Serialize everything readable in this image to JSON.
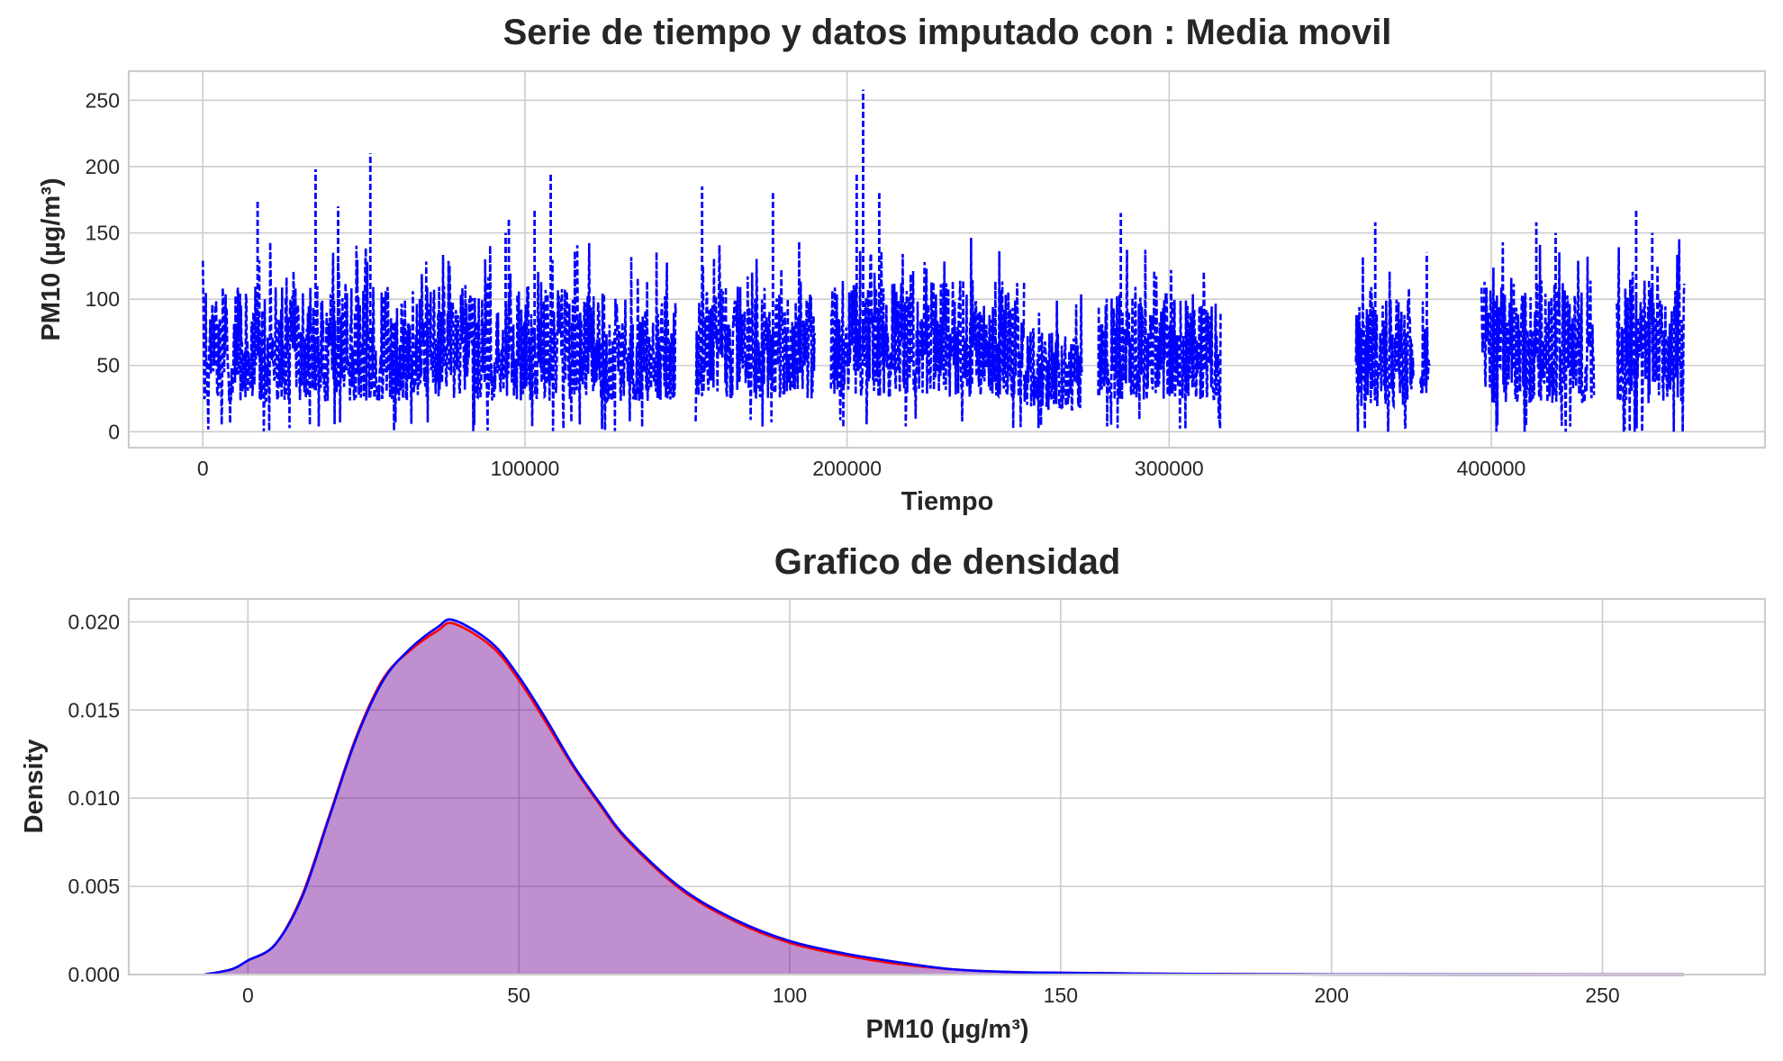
{
  "chart_data": [
    {
      "type": "line",
      "title": "Serie de tiempo y datos imputado con : Media movil",
      "xlabel": "Tiempo",
      "ylabel": "PM10 (µg/m³)",
      "xlim": [
        -23000,
        485000
      ],
      "ylim": [
        -12,
        272
      ],
      "xticks": [
        0,
        100000,
        200000,
        300000,
        400000
      ],
      "xtick_labels": [
        "0",
        "100000",
        "200000",
        "300000",
        "400000"
      ],
      "yticks": [
        0,
        50,
        100,
        150,
        200,
        250
      ],
      "ytick_labels": [
        "0",
        "50",
        "100",
        "150",
        "200",
        "250"
      ],
      "grid": true,
      "line_style": "dashed",
      "color": "#0000ff",
      "series": [
        {
          "segments": [
            {
              "x": [
                0,
                147000
              ],
              "low": 8,
              "high": 110
            },
            {
              "x": [
                153000,
                190000
              ],
              "low": 10,
              "high": 110
            },
            {
              "x": [
                195000,
                255000
              ],
              "low": 10,
              "high": 115
            },
            {
              "x": [
                255000,
                273000
              ],
              "low": 5,
              "high": 80
            },
            {
              "x": [
                278000,
                316000
              ],
              "low": 10,
              "high": 105
            },
            {
              "x": [
                358000,
                376000
              ],
              "low": 5,
              "high": 100
            },
            {
              "x": [
                378000,
                381000
              ],
              "low": 20,
              "high": 80
            },
            {
              "x": [
                397000,
                432000
              ],
              "low": 5,
              "high": 115
            },
            {
              "x": [
                439000,
                460000
              ],
              "low": 5,
              "high": 115
            }
          ],
          "peaks": [
            {
              "x": 17000,
              "y": 175
            },
            {
              "x": 35000,
              "y": 198
            },
            {
              "x": 42000,
              "y": 170
            },
            {
              "x": 52000,
              "y": 210
            },
            {
              "x": 95000,
              "y": 160
            },
            {
              "x": 94000,
              "y": 150
            },
            {
              "x": 103000,
              "y": 168
            },
            {
              "x": 108000,
              "y": 195
            },
            {
              "x": 155000,
              "y": 185
            },
            {
              "x": 177000,
              "y": 180
            },
            {
              "x": 203000,
              "y": 195
            },
            {
              "x": 205000,
              "y": 258
            },
            {
              "x": 210000,
              "y": 180
            },
            {
              "x": 285000,
              "y": 165
            },
            {
              "x": 364000,
              "y": 158
            },
            {
              "x": 380000,
              "y": 135
            },
            {
              "x": 414000,
              "y": 158
            },
            {
              "x": 420000,
              "y": 150
            },
            {
              "x": 445000,
              "y": 168
            },
            {
              "x": 450000,
              "y": 150
            }
          ]
        }
      ]
    },
    {
      "type": "area",
      "title": "Grafico de densidad",
      "xlabel": "PM10 (µg/m³)",
      "ylabel": "Density",
      "xlim": [
        -22,
        280
      ],
      "ylim": [
        0,
        0.0213
      ],
      "xticks": [
        0,
        50,
        100,
        150,
        200,
        250
      ],
      "xtick_labels": [
        "0",
        "50",
        "100",
        "150",
        "200",
        "250"
      ],
      "yticks": [
        0,
        0.005,
        0.01,
        0.015,
        0.02
      ],
      "ytick_labels": [
        "0.000",
        "0.005",
        "0.010",
        "0.015",
        "0.020"
      ],
      "grid": true,
      "fill_color": "#bf8fce",
      "series": [
        {
          "color": "#ff0000",
          "x": [
            -8,
            -3,
            0,
            5,
            10,
            15,
            20,
            25,
            30,
            35,
            38,
            45,
            50,
            55,
            60,
            65,
            70,
            80,
            90,
            100,
            110,
            120,
            130,
            140,
            150,
            170,
            200,
            250,
            265
          ],
          "y": [
            0,
            0.0003,
            0.0008,
            0.0017,
            0.0045,
            0.009,
            0.0135,
            0.0168,
            0.0184,
            0.0195,
            0.0199,
            0.0186,
            0.0167,
            0.0143,
            0.0118,
            0.0096,
            0.0076,
            0.0048,
            0.003,
            0.0018,
            0.0011,
            0.0006,
            0.0003,
            0.00015,
            0.0001,
            4e-05,
            1e-05,
            0,
            0
          ]
        },
        {
          "color": "#0000ff",
          "x": [
            -8,
            -3,
            0,
            5,
            10,
            15,
            20,
            25,
            30,
            35,
            38,
            45,
            50,
            55,
            60,
            65,
            70,
            80,
            90,
            100,
            110,
            120,
            130,
            140,
            150,
            170,
            200,
            250,
            265
          ],
          "y": [
            0,
            0.0003,
            0.0008,
            0.0017,
            0.0044,
            0.0089,
            0.0134,
            0.0167,
            0.0185,
            0.0197,
            0.0201,
            0.0188,
            0.0169,
            0.0145,
            0.0119,
            0.0097,
            0.0077,
            0.0049,
            0.0031,
            0.0019,
            0.0012,
            0.0007,
            0.0003,
            0.00015,
            0.0001,
            4e-05,
            1e-05,
            0,
            0
          ]
        }
      ]
    }
  ]
}
